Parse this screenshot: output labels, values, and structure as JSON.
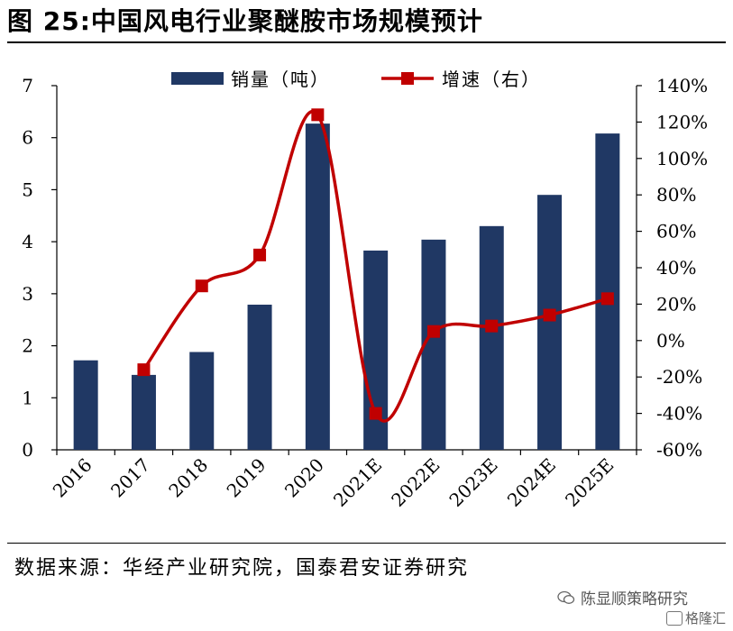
{
  "page": {
    "title": "图 25:中国风电行业聚醚胺市场规模预计",
    "source": "数据来源：华经产业研究院，国泰君安证券研究",
    "watermark": "陈显顺策略研究",
    "watermark2": "格隆汇"
  },
  "chart_data": {
    "type": "bar+line",
    "title": "图 25:中国风电行业聚醚胺市场规模预计",
    "categories": [
      "2016",
      "2017",
      "2018",
      "2019",
      "2020",
      "2021E",
      "2022E",
      "2023E",
      "2024E",
      "2025E"
    ],
    "series": [
      {
        "name": "销量（吨）",
        "type": "bar",
        "axis": "left",
        "color": "#203864",
        "values": [
          1.72,
          1.44,
          1.88,
          2.79,
          6.27,
          3.83,
          4.04,
          4.3,
          4.9,
          6.08
        ]
      },
      {
        "name": "增速（右）",
        "type": "line",
        "axis": "right",
        "color": "#c00000",
        "values": [
          null,
          -16,
          30,
          47,
          124,
          -40,
          5,
          8,
          14,
          23
        ]
      }
    ],
    "left_axis": {
      "ylim": [
        0,
        7
      ],
      "ticks": [
        "0",
        "1",
        "2",
        "3",
        "4",
        "5",
        "6",
        "7"
      ]
    },
    "right_axis": {
      "ylim": [
        -60,
        140
      ],
      "ticks": [
        "-60%",
        "-40%",
        "-20%",
        "0%",
        "20%",
        "40%",
        "60%",
        "80%",
        "100%",
        "120%",
        "140%"
      ]
    },
    "legend": {
      "placement": "top-center",
      "bar_label": "销量（吨）",
      "line_label": "增速（右）"
    },
    "grid": false
  }
}
